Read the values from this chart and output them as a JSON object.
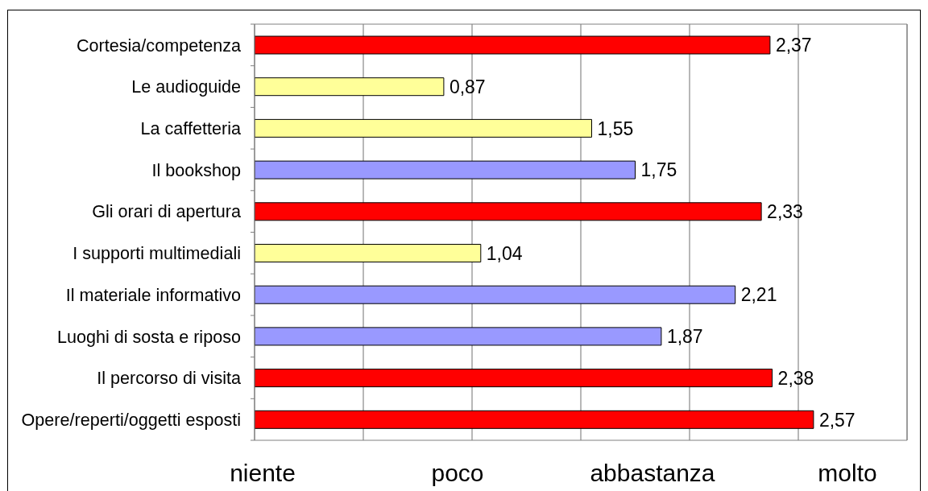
{
  "chart_data": {
    "type": "bar",
    "orientation": "horizontal",
    "categories": [
      "Cortesia/competenza",
      "Le audioguide",
      "La caffetteria",
      "Il bookshop",
      "Gli orari di apertura",
      "I supporti multimediali",
      "Il materiale informativo",
      "Luoghi di sosta e riposo",
      "Il percorso di visita",
      "Opere/reperti/oggetti esposti"
    ],
    "values": [
      2.37,
      0.87,
      1.55,
      1.75,
      2.33,
      1.04,
      2.21,
      1.87,
      2.38,
      2.57
    ],
    "colors": [
      "#ff0000",
      "#ffff99",
      "#ffff99",
      "#9999ff",
      "#ff0000",
      "#ffff99",
      "#9999ff",
      "#9999ff",
      "#ff0000",
      "#ff0000"
    ],
    "value_labels": [
      "2,37",
      "0,87",
      "1,55",
      "1,75",
      "2,33",
      "1,04",
      "2,21",
      "1,87",
      "2,38",
      "2,57"
    ],
    "xlim": [
      0,
      3
    ],
    "xticks": [
      {
        "value": 0,
        "label": null
      },
      {
        "value": 0.5,
        "label": null
      },
      {
        "value": 1,
        "label": null
      },
      {
        "value": 1.5,
        "label": null
      },
      {
        "value": 2,
        "label": null
      },
      {
        "value": 2.5,
        "label": null
      },
      {
        "value": 3,
        "label": null
      }
    ],
    "grid": "x",
    "tick_labels": "y",
    "annotations": [
      "niente",
      "poco",
      "abbastanza",
      "molto"
    ]
  }
}
